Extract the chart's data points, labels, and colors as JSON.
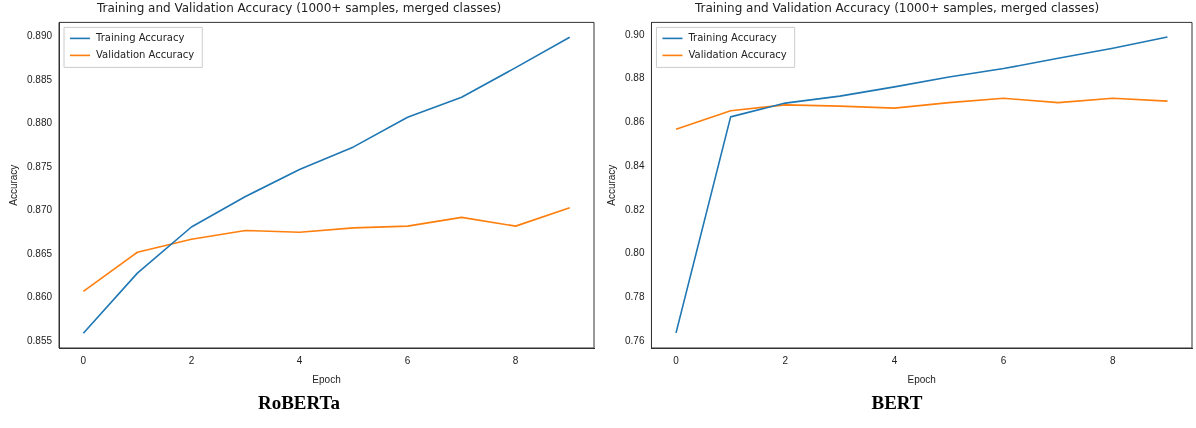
{
  "chart_data": [
    {
      "type": "line",
      "title": "Training and Validation Accuracy (1000+ samples, merged classes)",
      "xlabel": "Epoch",
      "ylabel": "Accuracy",
      "annotations": [
        "RoBERTa"
      ],
      "x": [
        0,
        1,
        2,
        3,
        4,
        5,
        6,
        7,
        8,
        9
      ],
      "series": [
        {
          "name": "Training Accuracy",
          "color": "#1f77b4",
          "values": [
            0.8559,
            0.8628,
            0.8681,
            0.8716,
            0.8747,
            0.8773,
            0.8807,
            0.883,
            0.8864,
            0.8899
          ]
        },
        {
          "name": "Validation Accuracy",
          "color": "#ff7f0e",
          "values": [
            0.8607,
            0.8652,
            0.8667,
            0.8677,
            0.8675,
            0.868,
            0.8682,
            0.8692,
            0.8682,
            0.8703
          ]
        }
      ],
      "xlim": [
        -0.45,
        9.45
      ],
      "xticks": [
        0,
        2,
        4,
        6,
        8
      ],
      "ylim": [
        0.8542,
        0.8916
      ],
      "yticks": [
        {
          "value": 0.855,
          "label": "0.855"
        },
        {
          "value": 0.86,
          "label": "0.860"
        },
        {
          "value": 0.865,
          "label": "0.865"
        },
        {
          "value": 0.87,
          "label": "0.870"
        },
        {
          "value": 0.875,
          "label": "0.875"
        },
        {
          "value": 0.88,
          "label": "0.880"
        },
        {
          "value": 0.885,
          "label": "0.885"
        },
        {
          "value": 0.89,
          "label": "0.890"
        }
      ],
      "grid": false,
      "legend": "top left",
      "marker": "none",
      "line_style": "solid"
    },
    {
      "type": "line",
      "title": "Training and Validation Accuracy (1000+ samples, merged classes)",
      "xlabel": "Epoch",
      "ylabel": "Accuracy",
      "annotations": [
        "BERT"
      ],
      "x": [
        0,
        1,
        2,
        3,
        4,
        5,
        6,
        7,
        8,
        9
      ],
      "series": [
        {
          "name": "Training Accuracy",
          "color": "#1f77b4",
          "values": [
            0.7637,
            0.8625,
            0.8688,
            0.872,
            0.8762,
            0.8807,
            0.8846,
            0.8893,
            0.8939,
            0.899
          ]
        },
        {
          "name": "Validation Accuracy",
          "color": "#ff7f0e",
          "values": [
            0.8568,
            0.8653,
            0.868,
            0.8674,
            0.8665,
            0.869,
            0.871,
            0.869,
            0.871,
            0.8697
          ]
        }
      ],
      "xlim": [
        -0.45,
        9.45
      ],
      "xticks": [
        0,
        2,
        4,
        6,
        8
      ],
      "ylim": [
        0.7568,
        0.9057
      ],
      "yticks": [
        {
          "value": 0.76,
          "label": "0.76"
        },
        {
          "value": 0.78,
          "label": "0.78"
        },
        {
          "value": 0.8,
          "label": "0.80"
        },
        {
          "value": 0.82,
          "label": "0.82"
        },
        {
          "value": 0.84,
          "label": "0.84"
        },
        {
          "value": 0.86,
          "label": "0.86"
        },
        {
          "value": 0.88,
          "label": "0.88"
        },
        {
          "value": 0.9,
          "label": "0.90"
        }
      ],
      "grid": false,
      "legend": "top left",
      "marker": "none",
      "line_style": "solid"
    }
  ]
}
